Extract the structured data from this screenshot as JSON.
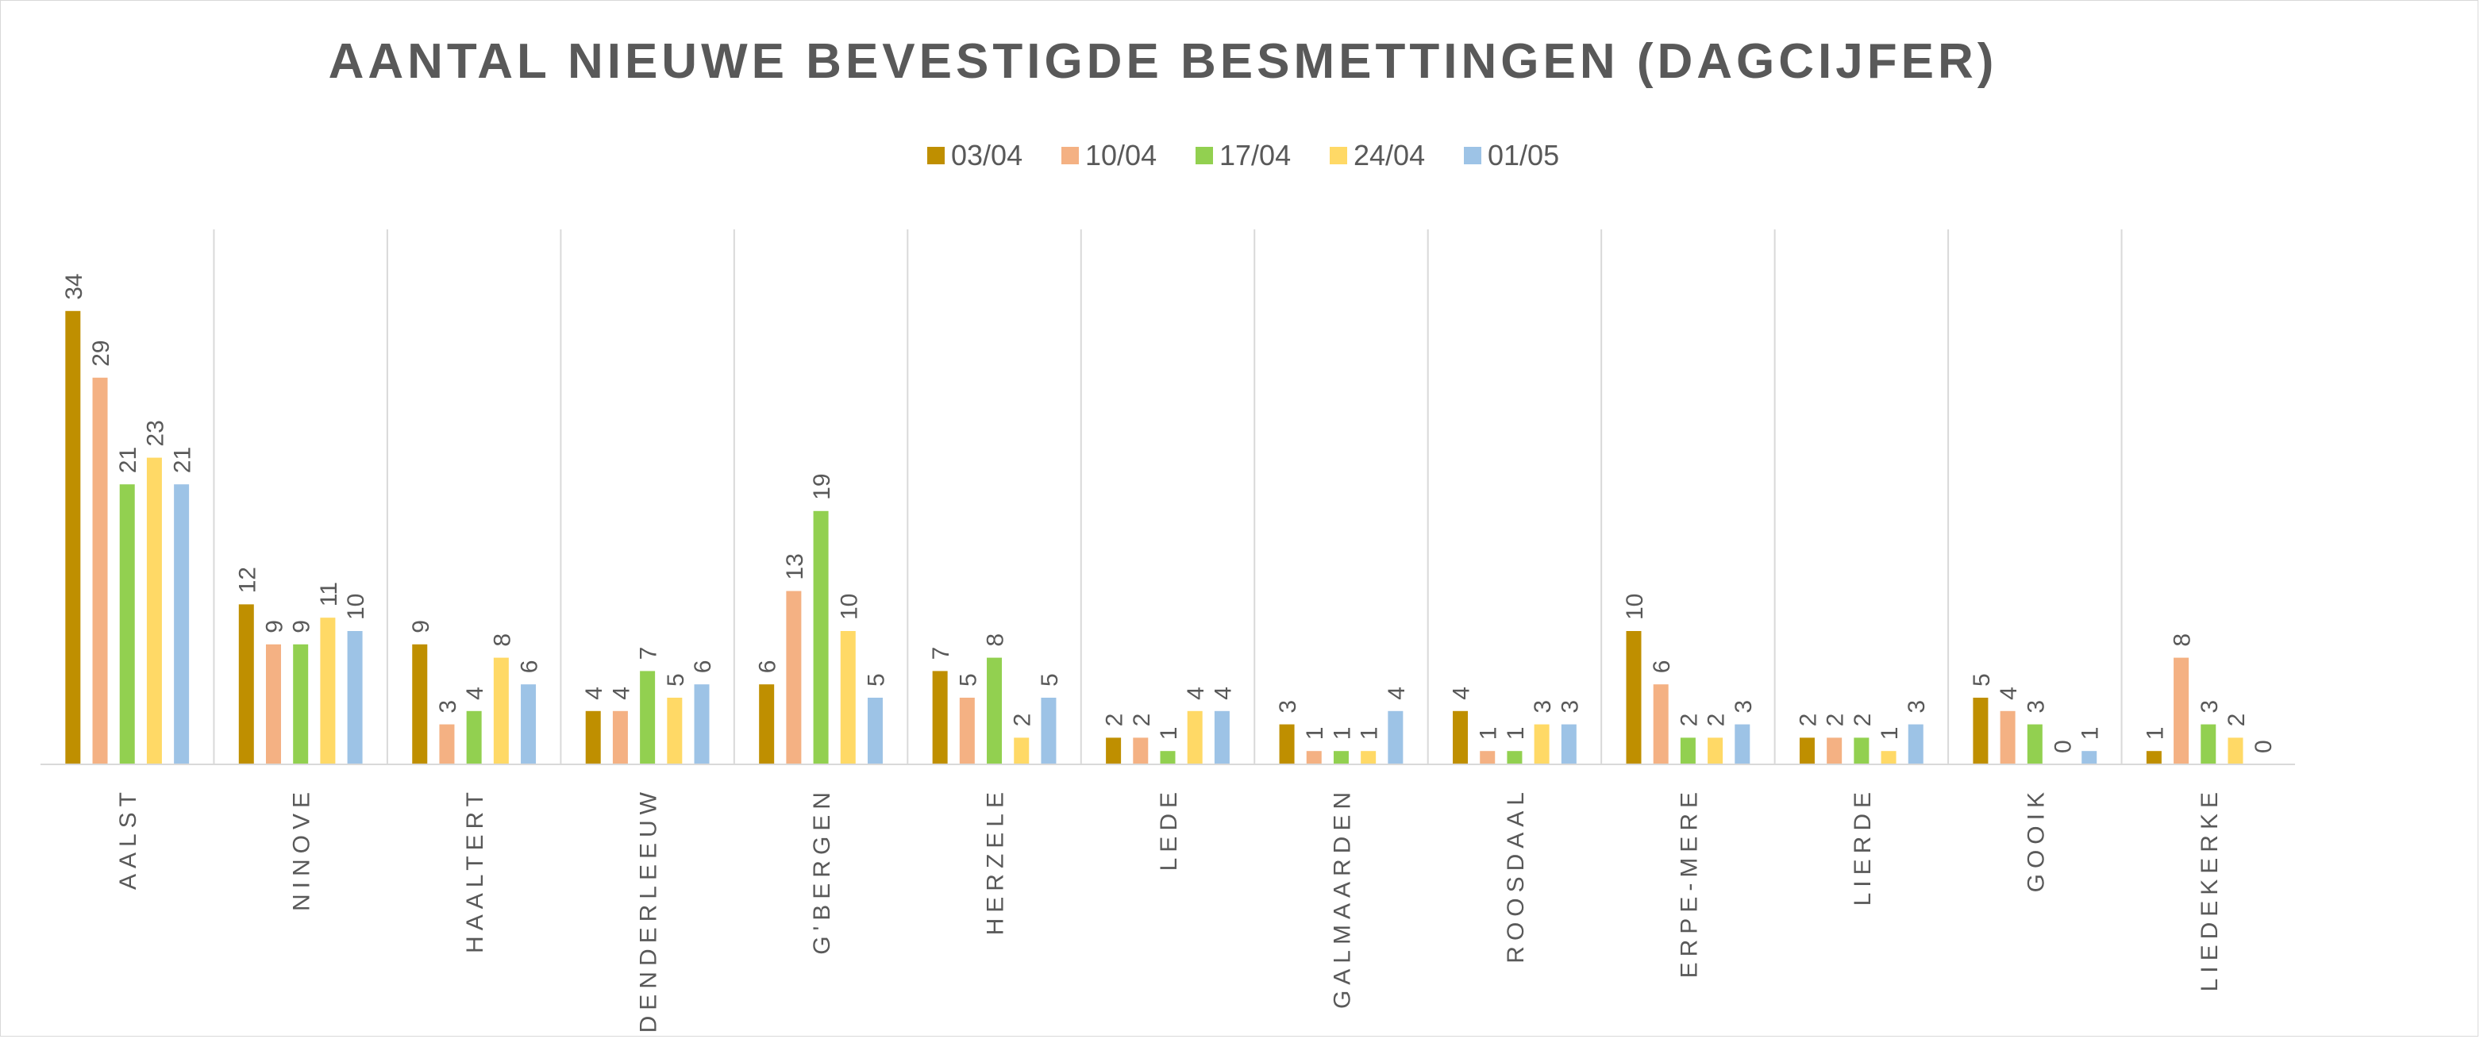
{
  "chart_data": {
    "type": "bar",
    "title": "AANTAL NIEUWE BEVESTIGDE BESMETTINGEN (DAGCIJFER)",
    "xlabel": "",
    "ylabel": "",
    "ylim": [
      0,
      40
    ],
    "legend_position": "top-center",
    "grid": "vertical-category-separators",
    "categories": [
      "AALST",
      "NINOVE",
      "HAALTERT",
      "DENDERLEEUW",
      "G'BERGEN",
      "HERZELE",
      "LEDE",
      "GALMAARDEN",
      "ROOSDAAL",
      "ERPE-MERE",
      "LIERDE",
      "GOOIK",
      "LIEDEKERKE"
    ],
    "series": [
      {
        "name": "03/04",
        "color": "#bf8f00",
        "values": [
          34,
          12,
          9,
          4,
          6,
          7,
          2,
          3,
          4,
          10,
          2,
          5,
          1
        ]
      },
      {
        "name": "10/04",
        "color": "#f4b183",
        "values": [
          29,
          9,
          3,
          4,
          13,
          5,
          2,
          1,
          1,
          6,
          2,
          4,
          8
        ]
      },
      {
        "name": "17/04",
        "color": "#92d050",
        "values": [
          21,
          9,
          4,
          7,
          19,
          8,
          1,
          1,
          1,
          2,
          2,
          3,
          3
        ]
      },
      {
        "name": "24/04",
        "color": "#ffd966",
        "values": [
          23,
          11,
          8,
          5,
          10,
          2,
          4,
          1,
          3,
          2,
          1,
          0,
          2
        ]
      },
      {
        "name": "01/05",
        "color": "#9dc3e6",
        "values": [
          21,
          10,
          6,
          6,
          5,
          5,
          4,
          4,
          3,
          3,
          3,
          1,
          0
        ]
      }
    ]
  }
}
